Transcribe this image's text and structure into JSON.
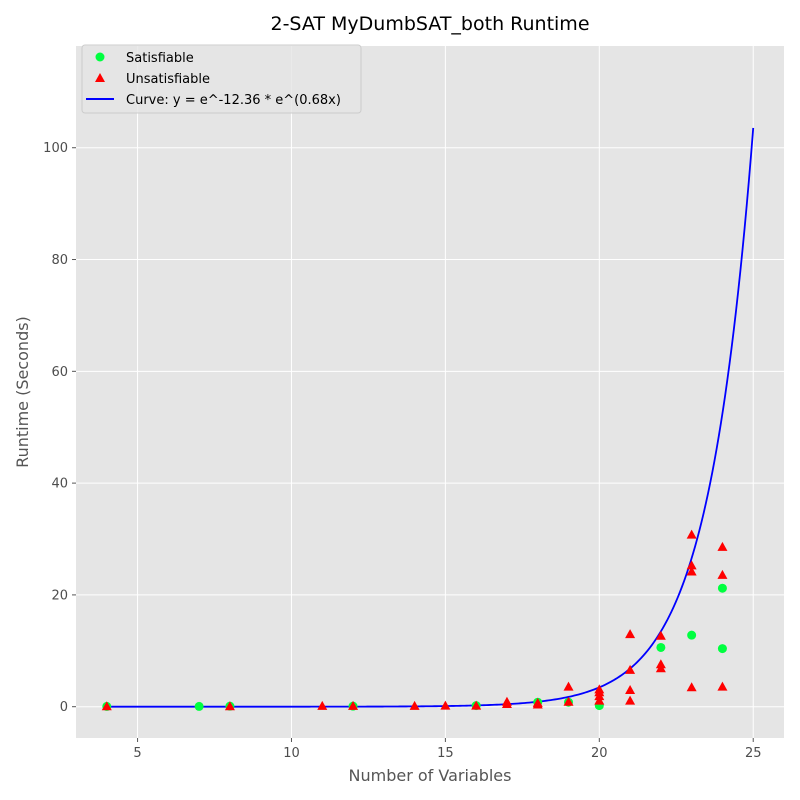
{
  "chart_data": {
    "type": "scatter",
    "title": "2-SAT MyDumbSAT_both Runtime",
    "xlabel": "Number of Variables",
    "ylabel": "Runtime (Seconds)",
    "xlim": [
      3.0,
      26.0
    ],
    "ylim": [
      -5.6,
      118.2
    ],
    "xticks": [
      5,
      10,
      15,
      20,
      25
    ],
    "yticks": [
      0,
      20,
      40,
      60,
      80,
      100
    ],
    "grid": true,
    "legend_position": "top-left",
    "colors": {
      "background": "#e5e5e5",
      "grid": "#ffffff",
      "satisfiable": "#00ff40",
      "unsatisfiable": "#ff0000",
      "curve": "#0000ff"
    },
    "series": [
      {
        "name": "Satisfiable",
        "kind": "scatter",
        "marker": "circle",
        "points": [
          [
            4,
            0.05
          ],
          [
            7,
            0.05
          ],
          [
            8,
            0.1
          ],
          [
            12,
            0.1
          ],
          [
            16,
            0.2
          ],
          [
            18,
            0.8
          ],
          [
            19,
            0.8
          ],
          [
            20,
            0.2
          ],
          [
            22,
            10.6
          ],
          [
            23,
            12.8
          ],
          [
            24,
            21.2
          ],
          [
            24,
            10.4
          ]
        ]
      },
      {
        "name": "Unsatisfiable",
        "kind": "scatter",
        "marker": "triangle",
        "points": [
          [
            4,
            0.0
          ],
          [
            8,
            0.0
          ],
          [
            11,
            0.05
          ],
          [
            12,
            0.05
          ],
          [
            14,
            0.05
          ],
          [
            15,
            0.1
          ],
          [
            16,
            0.1
          ],
          [
            17,
            0.4
          ],
          [
            17,
            0.8
          ],
          [
            18,
            0.3
          ],
          [
            18,
            0.6
          ],
          [
            19,
            0.8
          ],
          [
            19,
            3.5
          ],
          [
            20,
            1.0
          ],
          [
            20,
            1.8
          ],
          [
            20,
            2.5
          ],
          [
            20,
            3.0
          ],
          [
            21,
            1.0
          ],
          [
            21,
            2.9
          ],
          [
            21,
            6.5
          ],
          [
            21,
            12.9
          ],
          [
            22,
            6.8
          ],
          [
            22,
            7.5
          ],
          [
            22,
            12.6
          ],
          [
            23,
            3.4
          ],
          [
            23,
            24.1
          ],
          [
            23,
            25.2
          ],
          [
            23,
            30.7
          ],
          [
            24,
            3.5
          ],
          [
            24,
            23.5
          ],
          [
            24,
            28.5
          ]
        ]
      },
      {
        "name": "Curve: y = e^-12.36 * e^(0.68x)",
        "kind": "line",
        "fit": {
          "a": -12.36,
          "b": 0.68,
          "x_start": 4,
          "x_end": 25
        }
      }
    ]
  }
}
